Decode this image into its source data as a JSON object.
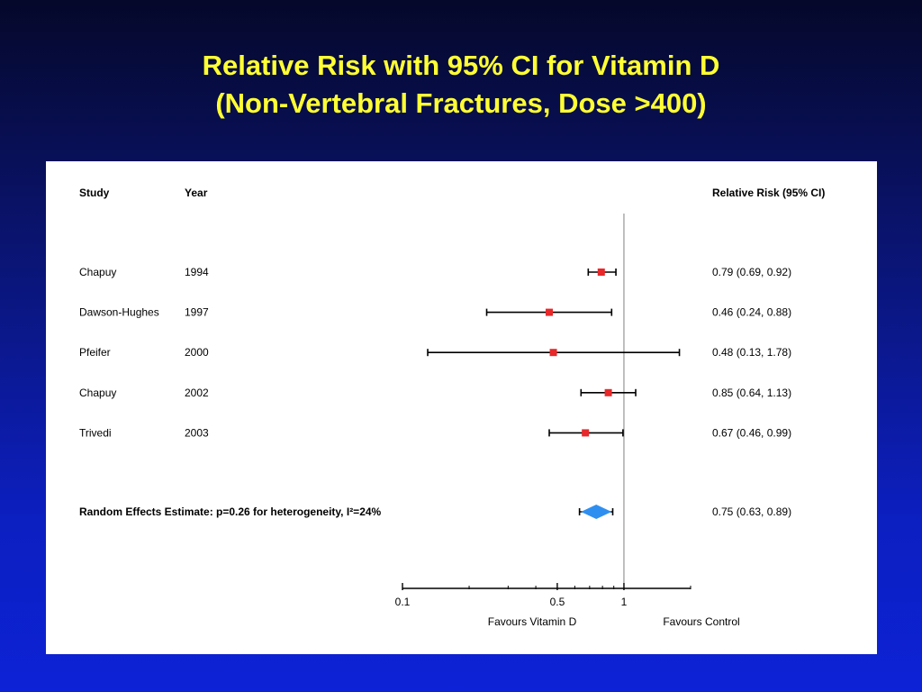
{
  "title": {
    "line1": "Relative Risk  with 95% CI for Vitamin D",
    "line2": "(Non-Vertebral Fractures, Dose >400)"
  },
  "colors": {
    "title": "#ffff33",
    "study_marker": "#e8282a",
    "pooled_diamond": "#2f8ff0",
    "reference_line": "#808080"
  },
  "chart_data": {
    "type": "forest",
    "x_scale": "log",
    "xlim": [
      0.1,
      2
    ],
    "x_ticks": [
      0.1,
      0.5,
      1
    ],
    "x_minor_ticks": [
      0.2,
      0.3,
      0.4,
      0.6,
      0.7,
      0.8,
      0.9,
      2
    ],
    "reference_value": 1,
    "columns": {
      "study": "Study",
      "year": "Year",
      "estimate": "Relative Risk (95% CI)"
    },
    "studies": [
      {
        "study": "Chapuy",
        "year": "1994",
        "rr": 0.79,
        "lower": 0.69,
        "upper": 0.92,
        "label": "0.79 (0.69, 0.92)"
      },
      {
        "study": "Dawson-Hughes",
        "year": "1997",
        "rr": 0.46,
        "lower": 0.24,
        "upper": 0.88,
        "label": "0.46 (0.24, 0.88)"
      },
      {
        "study": "Pfeifer",
        "year": "2000",
        "rr": 0.48,
        "lower": 0.13,
        "upper": 1.78,
        "label": "0.48 (0.13, 1.78)"
      },
      {
        "study": "Chapuy",
        "year": "2002",
        "rr": 0.85,
        "lower": 0.64,
        "upper": 1.13,
        "label": "0.85 (0.64, 1.13)"
      },
      {
        "study": "Trivedi",
        "year": "2003",
        "rr": 0.67,
        "lower": 0.46,
        "upper": 0.99,
        "label": "0.67 (0.46, 0.99)"
      }
    ],
    "pooled": {
      "label": "Random Effects Estimate: p=0.26 for heterogeneity, I²=24%",
      "rr": 0.75,
      "lower": 0.63,
      "upper": 0.89,
      "value_label": "0.75 (0.63, 0.89)"
    },
    "favours_left": "Favours Vitamin D",
    "favours_right": "Favours Control"
  }
}
